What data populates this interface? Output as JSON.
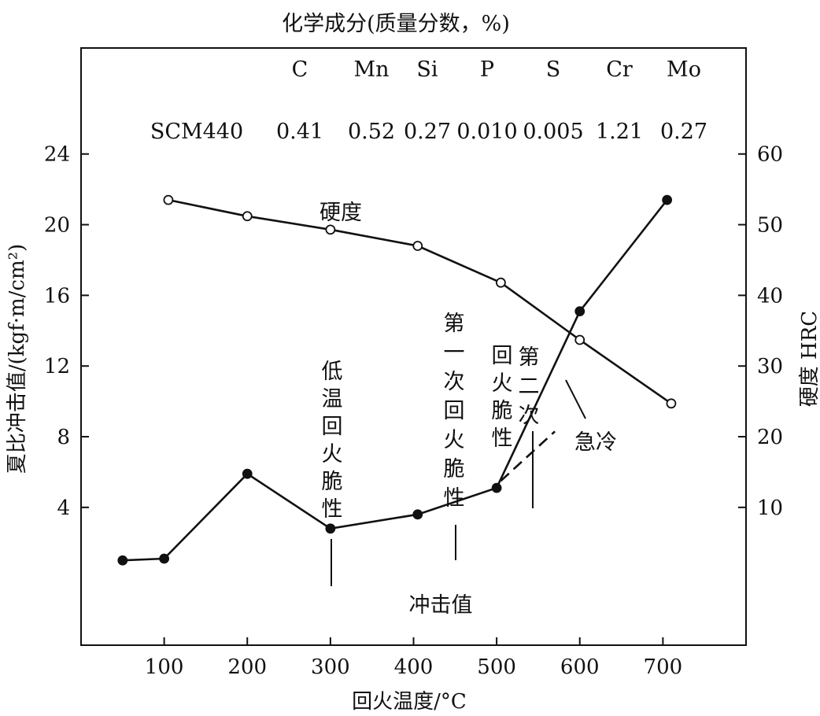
{
  "chart_data": {
    "type": "line",
    "title": "化学成分(质量分数，%)",
    "composition": {
      "grade": "SCM440",
      "elements": [
        "C",
        "Mn",
        "Si",
        "P",
        "S",
        "Cr",
        "Mo"
      ],
      "values": [
        "0.41",
        "0.52",
        "0.27",
        "0.010",
        "0.005",
        "1.21",
        "0.27"
      ]
    },
    "xlabel": "回火温度/°C",
    "ylabel_left": "夏比冲击值/(kgf·m/cm²)",
    "ylabel_right": "硬度 HRC",
    "xlim": [
      0,
      800
    ],
    "ylim_left": [
      -3.8,
      30
    ],
    "ylim_right": [
      -9.5,
      75
    ],
    "x_ticks": [
      100,
      200,
      300,
      400,
      500,
      600,
      700
    ],
    "y_left_ticks": [
      4,
      8,
      12,
      16,
      20,
      24
    ],
    "y_right_ticks": [
      10,
      20,
      30,
      40,
      50,
      60
    ],
    "grid": false,
    "series": [
      {
        "name": "硬度",
        "axis": "right",
        "marker": "open-circle",
        "x": [
          105,
          200,
          300,
          405,
          505,
          600,
          710
        ],
        "y": [
          53.5,
          51.2,
          49.3,
          47.0,
          41.8,
          33.7,
          24.7
        ]
      },
      {
        "name": "冲击值",
        "axis": "left",
        "marker": "filled-circle",
        "x": [
          50,
          100,
          200,
          300,
          405,
          500,
          600,
          705
        ],
        "y": [
          1.0,
          1.1,
          5.9,
          2.8,
          3.6,
          5.1,
          15.1,
          21.4
        ]
      },
      {
        "name": "急冷",
        "axis": "left",
        "style": "dashed",
        "x": [
          505,
          570
        ],
        "y": [
          5.5,
          8.3
        ]
      }
    ],
    "annotations": [
      {
        "text": "低温回火脆性",
        "x": 300,
        "y": 2.8,
        "axis": "left"
      },
      {
        "text": "第一次回火脆性",
        "x": 450,
        "y": 4.3,
        "axis": "left"
      },
      {
        "text": "第二次回火脆性",
        "x": 538,
        "y": 7.0,
        "axis": "left"
      },
      {
        "text": "急冷",
        "x": 590,
        "y": 13.0,
        "axis": "left"
      }
    ]
  }
}
